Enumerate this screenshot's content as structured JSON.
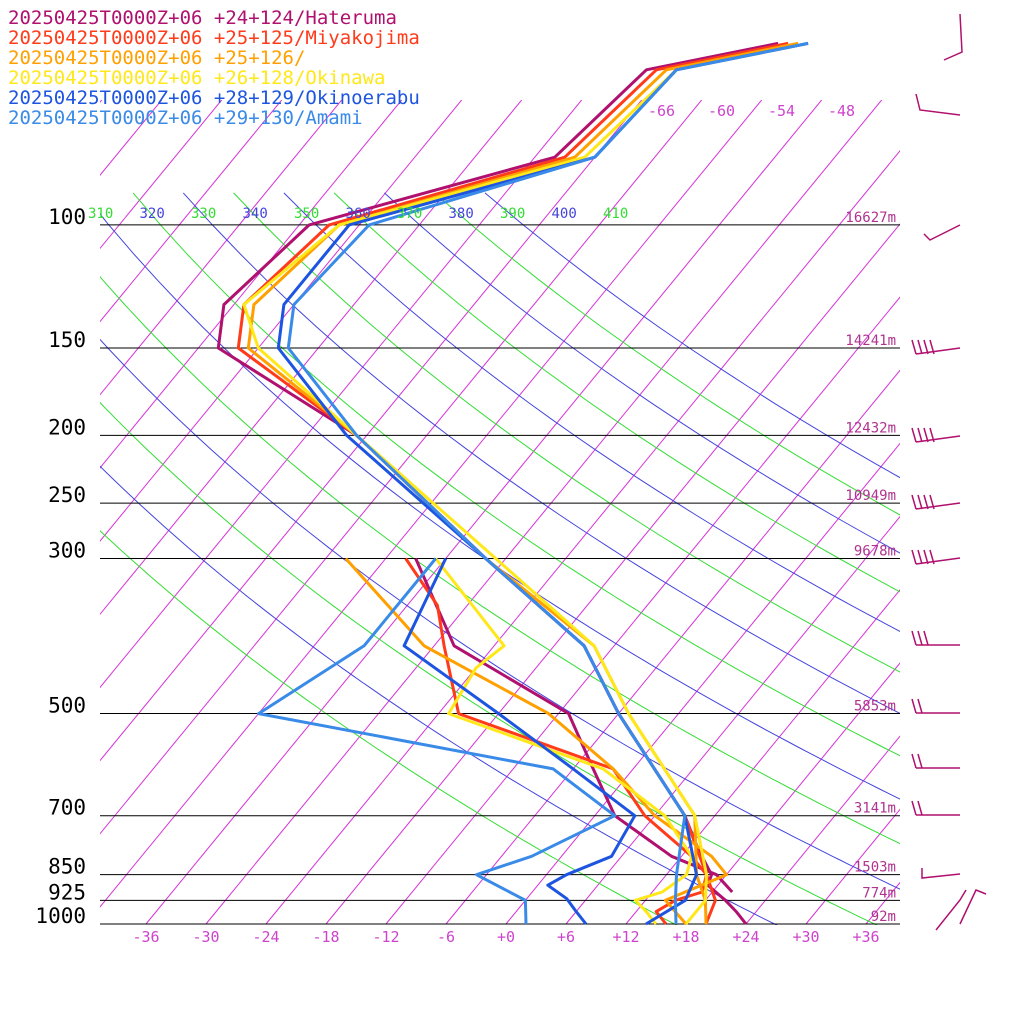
{
  "chart_data": {
    "type": "line",
    "title": "",
    "xlabel": "",
    "ylabel": "",
    "xlim": [
      -42,
      38
    ],
    "y_axis_log_pressure_hpa": [
      1000,
      100
    ],
    "pressure_levels": [
      100,
      150,
      200,
      250,
      300,
      500,
      700,
      850,
      925,
      1000
    ],
    "heights": [
      "16627m",
      "14241m",
      "12432m",
      "10949m",
      "9678m",
      "5853m",
      "3141m",
      "1503m",
      "774m",
      "92m"
    ],
    "temp_ticks": [
      "-36",
      "-30",
      "-24",
      "-18",
      "-12",
      "-6",
      "+0",
      "+6",
      "+12",
      "+18",
      "+24",
      "+30",
      "+36"
    ],
    "temp_tick_values": [
      -36,
      -30,
      -24,
      -18,
      -12,
      -6,
      0,
      6,
      12,
      18,
      24,
      30,
      36
    ],
    "theta_labels": [
      {
        "text": "310",
        "color": "#33dd33"
      },
      {
        "text": "320",
        "color": "#4444dd"
      },
      {
        "text": "330",
        "color": "#33dd33"
      },
      {
        "text": "340",
        "color": "#4444dd"
      },
      {
        "text": "350",
        "color": "#33dd33"
      },
      {
        "text": "360",
        "color": "#4444dd"
      },
      {
        "text": "370",
        "color": "#33dd33"
      },
      {
        "text": "380",
        "color": "#4444dd"
      },
      {
        "text": "390",
        "color": "#33dd33"
      },
      {
        "text": "400",
        "color": "#4444dd"
      },
      {
        "text": "410",
        "color": "#33dd33"
      }
    ],
    "upper_temp_labels": [
      "-66",
      "-60",
      "-54",
      "-48"
    ],
    "series": [
      {
        "name": "20250425T0000Z+06 +24+124/Hateruma",
        "color": "#b0106e",
        "temperature": [
          [
            55,
            -45
          ],
          [
            60,
            -56
          ],
          [
            80,
            -58
          ],
          [
            100,
            -77
          ],
          [
            130,
            -79
          ],
          [
            150,
            -76
          ],
          [
            200,
            -55
          ],
          [
            300,
            -32
          ],
          [
            400,
            -15
          ],
          [
            500,
            -6
          ],
          [
            700,
            9
          ],
          [
            780,
            13
          ],
          [
            850,
            16.5
          ],
          [
            880,
            17
          ],
          [
            925,
            20
          ],
          [
            960,
            22
          ],
          [
            1000,
            24
          ]
        ],
        "dewpoint": [
          [
            300,
            -39
          ],
          [
            400,
            -28
          ],
          [
            500,
            -11
          ],
          [
            600,
            -4
          ],
          [
            700,
            2
          ],
          [
            800,
            11
          ],
          [
            850,
            17
          ],
          [
            900,
            20
          ]
        ]
      },
      {
        "name": "20250425T0000Z+06 +25+125/Miyakojima",
        "color": "#ff3b1a",
        "temperature": [
          [
            55,
            -44
          ],
          [
            60,
            -55
          ],
          [
            80,
            -57
          ],
          [
            100,
            -75
          ],
          [
            130,
            -77
          ],
          [
            150,
            -74
          ],
          [
            200,
            -55
          ],
          [
            300,
            -32
          ],
          [
            400,
            -15
          ],
          [
            500,
            -6
          ],
          [
            700,
            9
          ],
          [
            850,
            16
          ],
          [
            925,
            19
          ],
          [
            1000,
            20
          ]
        ],
        "dewpoint": [
          [
            300,
            -40
          ],
          [
            350,
            -33
          ],
          [
            400,
            -29
          ],
          [
            500,
            -22
          ],
          [
            600,
            -2
          ],
          [
            700,
            5
          ],
          [
            800,
            13
          ],
          [
            850,
            16
          ],
          [
            900,
            17
          ],
          [
            925,
            15
          ],
          [
            960,
            14
          ],
          [
            1000,
            16
          ]
        ]
      },
      {
        "name": "20250425T0000Z+06 +25+126/",
        "color": "#ffa000",
        "temperature": [
          [
            55,
            -43
          ],
          [
            60,
            -54
          ],
          [
            80,
            -56
          ],
          [
            100,
            -74
          ],
          [
            130,
            -76
          ],
          [
            150,
            -73
          ],
          [
            200,
            -55
          ],
          [
            300,
            -32
          ],
          [
            400,
            -14
          ],
          [
            500,
            -5
          ],
          [
            700,
            10
          ],
          [
            850,
            15
          ],
          [
            925,
            18
          ],
          [
            1000,
            20
          ]
        ],
        "dewpoint": [
          [
            300,
            -46
          ],
          [
            400,
            -31
          ],
          [
            500,
            -13
          ],
          [
            600,
            -2
          ],
          [
            700,
            6
          ],
          [
            800,
            15
          ],
          [
            850,
            18
          ],
          [
            925,
            14
          ],
          [
            1000,
            18
          ]
        ]
      },
      {
        "name": "20250425T0000Z+06 +26+128/Okinawa",
        "color": "#ffe81a",
        "temperature": [
          [
            55,
            -42
          ],
          [
            60,
            -53
          ],
          [
            80,
            -55
          ],
          [
            100,
            -74
          ],
          [
            130,
            -77
          ],
          [
            150,
            -72
          ],
          [
            200,
            -55
          ],
          [
            300,
            -31
          ],
          [
            400,
            -14
          ],
          [
            500,
            -5
          ],
          [
            700,
            10
          ],
          [
            850,
            16
          ],
          [
            925,
            18
          ],
          [
            1000,
            18
          ]
        ],
        "dewpoint": [
          [
            300,
            -37
          ],
          [
            400,
            -23
          ],
          [
            430,
            -24
          ],
          [
            500,
            -23
          ],
          [
            600,
            -3
          ],
          [
            700,
            7
          ],
          [
            800,
            13
          ],
          [
            850,
            14
          ],
          [
            900,
            13
          ],
          [
            925,
            11
          ],
          [
            960,
            13
          ],
          [
            1000,
            15
          ]
        ]
      },
      {
        "name": "20250425T0000Z+06 +28+129/Okinoerabu",
        "color": "#1d55e0",
        "temperature": [
          [
            55,
            -42
          ],
          [
            60,
            -53
          ],
          [
            80,
            -54
          ],
          [
            100,
            -73
          ],
          [
            130,
            -73
          ],
          [
            150,
            -70
          ],
          [
            200,
            -56
          ],
          [
            300,
            -32
          ],
          [
            400,
            -15
          ],
          [
            500,
            -6
          ],
          [
            700,
            9
          ],
          [
            850,
            15
          ],
          [
            925,
            16
          ],
          [
            1000,
            14
          ]
        ],
        "dewpoint": [
          [
            300,
            -36
          ],
          [
            400,
            -33
          ],
          [
            500,
            -18
          ],
          [
            600,
            -6
          ],
          [
            700,
            4
          ],
          [
            800,
            5
          ],
          [
            850,
            2
          ],
          [
            880,
            1
          ],
          [
            920,
            4
          ],
          [
            960,
            6
          ],
          [
            1000,
            8
          ]
        ]
      },
      {
        "name": "20250425T0000Z+06 +29+130/Amami",
        "color": "#3a8ae8",
        "temperature": [
          [
            55,
            -42
          ],
          [
            60,
            -53
          ],
          [
            80,
            -54
          ],
          [
            100,
            -71
          ],
          [
            130,
            -72
          ],
          [
            150,
            -69
          ],
          [
            200,
            -55
          ],
          [
            300,
            -32
          ],
          [
            400,
            -15
          ],
          [
            500,
            -6
          ],
          [
            700,
            9
          ],
          [
            850,
            13
          ],
          [
            925,
            15
          ],
          [
            1000,
            17
          ]
        ],
        "dewpoint": [
          [
            300,
            -37
          ],
          [
            400,
            -37
          ],
          [
            500,
            -42
          ],
          [
            600,
            -8
          ],
          [
            700,
            2
          ],
          [
            800,
            -3
          ],
          [
            850,
            -7
          ],
          [
            925,
            0
          ],
          [
            1000,
            2
          ]
        ]
      }
    ],
    "wind_barb_color": "#b0106e"
  }
}
